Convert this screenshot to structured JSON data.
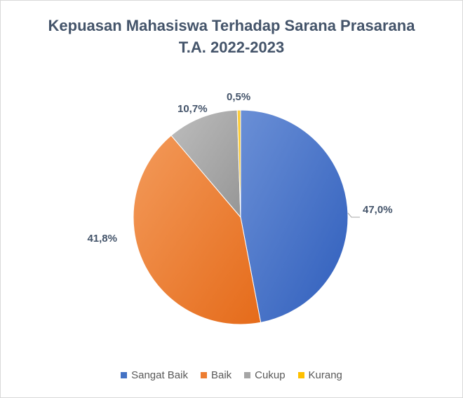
{
  "chart_data": {
    "type": "pie",
    "title_line1": "Kepuasan Mahasiswa Terhadap Sarana Prasarana",
    "title_line2": "T.A. 2022-2023",
    "categories": [
      "Sangat Baik",
      "Baik",
      "Cukup",
      "Kurang"
    ],
    "values": [
      47.0,
      41.8,
      10.7,
      0.5
    ],
    "labels": [
      "47,0%",
      "41,8%",
      "10,7%",
      "0,5%"
    ],
    "colors": [
      "#4472c4",
      "#ed7d31",
      "#a5a5a5",
      "#ffc000"
    ],
    "legend_position": "bottom"
  }
}
